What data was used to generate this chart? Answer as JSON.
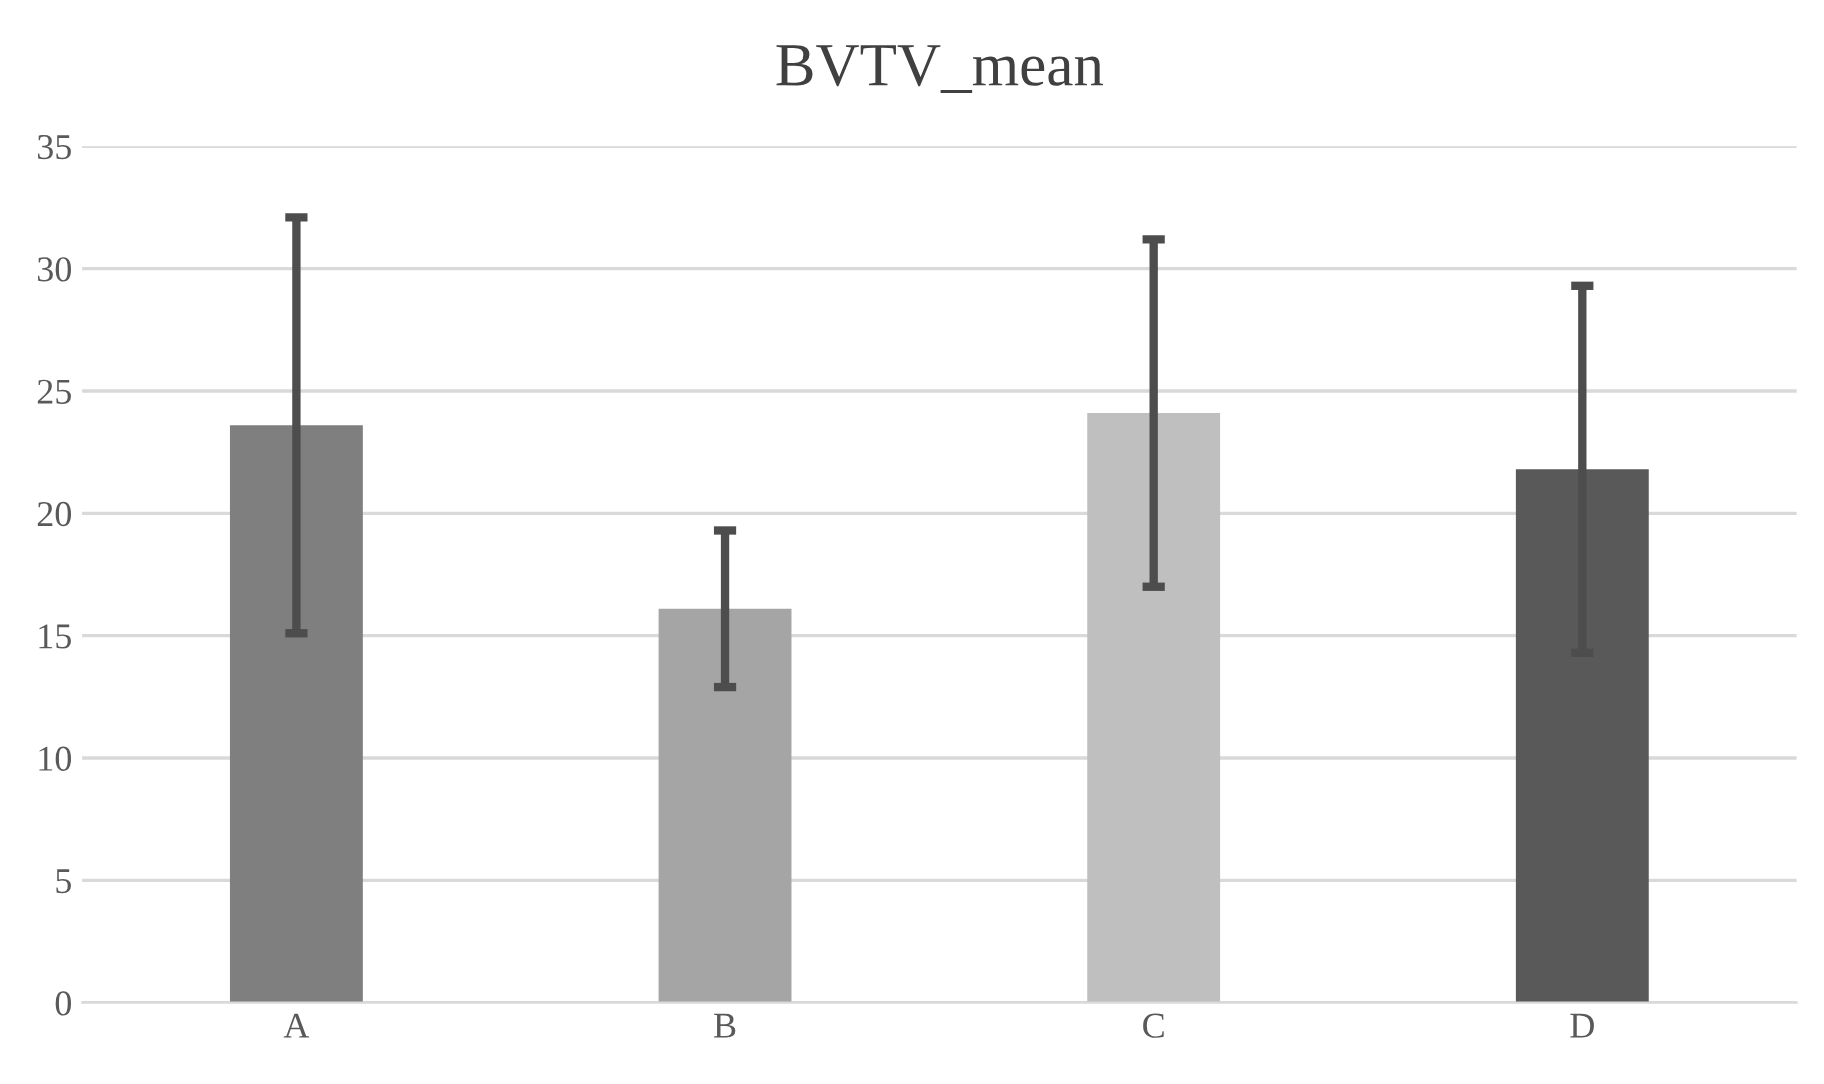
{
  "chart_data": {
    "type": "bar",
    "title": "BVTV_mean",
    "categories": [
      "A",
      "B",
      "C",
      "D"
    ],
    "values": [
      23.6,
      16.1,
      24.1,
      21.8
    ],
    "errors": [
      8.5,
      3.2,
      7.1,
      7.5
    ],
    "colors": [
      "#7f7f7f",
      "#a5a5a5",
      "#bfbfbf",
      "#595959"
    ],
    "ylim": [
      0,
      35
    ],
    "yticks": [
      0,
      5,
      10,
      15,
      20,
      25,
      30,
      35
    ],
    "grid": "y"
  }
}
